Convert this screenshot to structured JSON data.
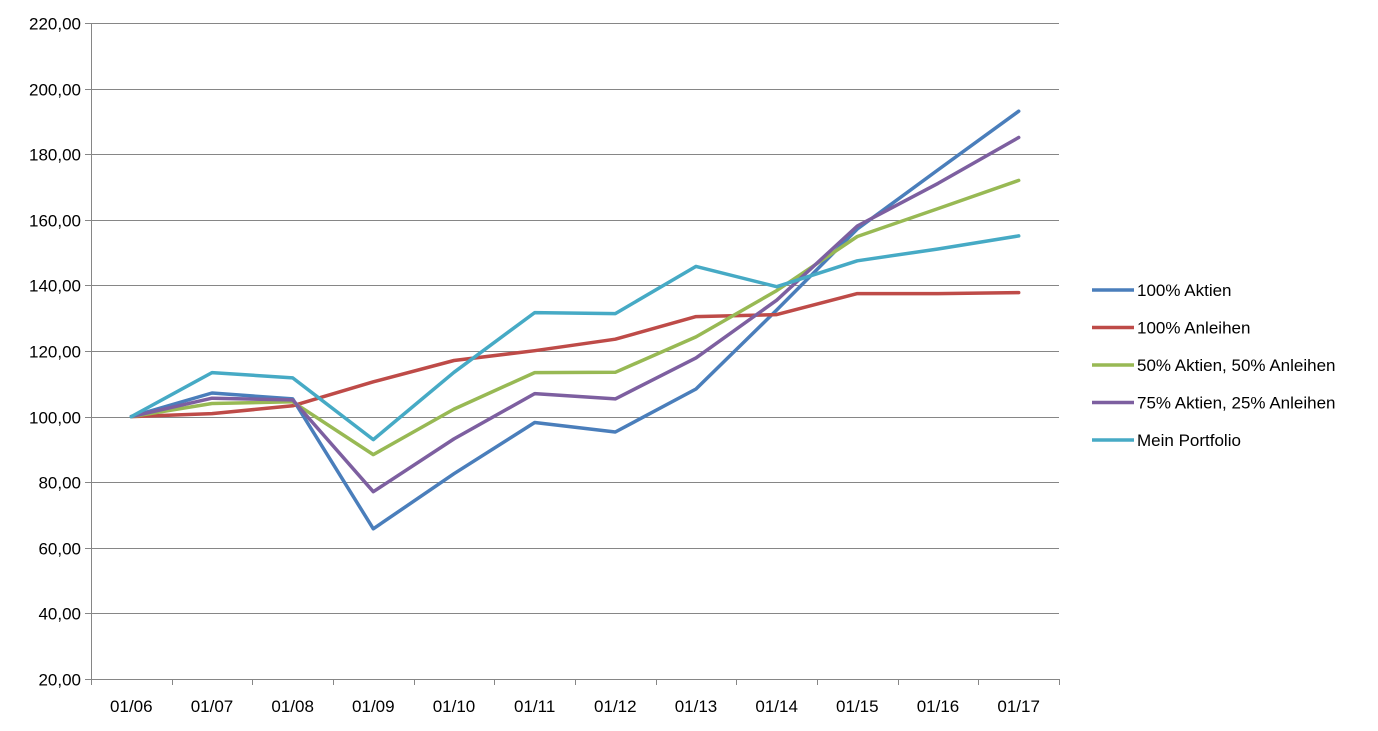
{
  "chart_data": {
    "type": "line",
    "title": "",
    "xlabel": "",
    "ylabel": "",
    "categories": [
      "01/06",
      "01/07",
      "01/08",
      "01/09",
      "01/10",
      "01/11",
      "01/12",
      "01/13",
      "01/14",
      "01/15",
      "01/16",
      "01/17"
    ],
    "ylim": [
      20,
      220
    ],
    "yticks": [
      20,
      40,
      60,
      80,
      100,
      120,
      140,
      160,
      180,
      200,
      220
    ],
    "ytick_labels": [
      "20,00",
      "40,00",
      "60,00",
      "80,00",
      "100,00",
      "120,00",
      "140,00",
      "160,00",
      "180,00",
      "200,00",
      "220,00"
    ],
    "grid": "horizontal",
    "legend_position": "right",
    "series": [
      {
        "name": "100% Aktien",
        "color": "#4a7ebb",
        "values": [
          100,
          107.2,
          105.4,
          65.8,
          82.6,
          98.2,
          95.3,
          108.4,
          132.5,
          157.2,
          175.2,
          193.1
        ]
      },
      {
        "name": "100% Anleihen",
        "color": "#be4b48",
        "values": [
          100,
          100.9,
          103.3,
          110.6,
          117.1,
          120.1,
          123.6,
          130.5,
          131.1,
          137.5,
          137.5,
          137.8
        ]
      },
      {
        "name": "50% Aktien, 50% Anleihen",
        "color": "#98b954",
        "values": [
          100,
          104.0,
          104.5,
          88.4,
          102.3,
          113.4,
          113.5,
          124.3,
          138.4,
          154.9,
          163.4,
          172.0
        ]
      },
      {
        "name": "75% Aktien, 25% Anleihen",
        "color": "#7d5fa0",
        "values": [
          100,
          105.6,
          105.1,
          77.1,
          93.2,
          107.0,
          105.4,
          117.9,
          135.5,
          158.1,
          171.1,
          185.1
        ]
      },
      {
        "name": "Mein Portfolio",
        "color": "#46aac5",
        "values": [
          100,
          113.4,
          111.8,
          93.0,
          113.5,
          131.7,
          131.4,
          145.8,
          139.6,
          147.5,
          151.1,
          155.1
        ]
      }
    ]
  }
}
